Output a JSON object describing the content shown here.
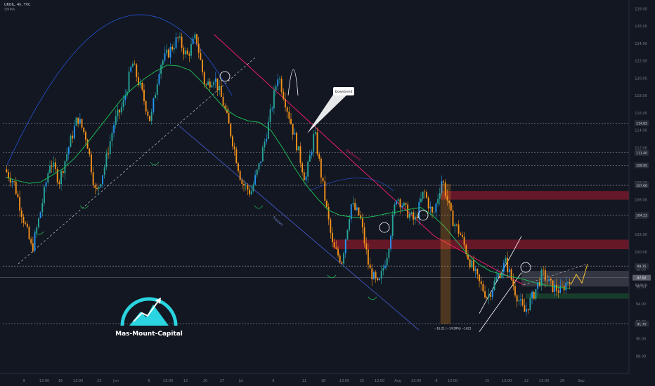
{
  "header": {
    "symbol_line": "UKOIL, 4h, TVC",
    "indicator_line": "SMMA"
  },
  "brand": {
    "name": "Mas-Mount-Capital",
    "accent": "#2ad4e0"
  },
  "annotations": {
    "downtrend": "Downtrend",
    "resistance": "Resistance",
    "support": "Support",
    "measure": "−16.21 (−14.99%) −1621"
  },
  "colors": {
    "background": "#131722",
    "bull_candle": "#26a69a",
    "bull_candle_alt": "#2196f3",
    "bear_candle": "#f7931a",
    "smma": "#1db954",
    "resistance_line": "#e91e63",
    "support_line": "#3f51b5",
    "zone_red": "#8b1a2b",
    "zone_green": "#1b4d2e",
    "zone_grey": "#5d606b"
  },
  "chart_data": {
    "type": "line",
    "title": "",
    "xlabel": "",
    "ylabel": "",
    "ylim": [
      86.0,
      129.0
    ],
    "grid": false,
    "x_tick_labels": [
      "9",
      "13:00",
      "16",
      "13:00",
      "23",
      "Jun",
      "6",
      "13:00",
      "13",
      "20",
      "27",
      "Jul",
      "6",
      "11",
      "18",
      "13:00",
      "25",
      "13:00",
      "Aug",
      "13:00",
      "8",
      "13:00",
      "15",
      "13:00",
      "22",
      "13:00",
      "29",
      "Sep"
    ],
    "y_tick_labels": [
      88.0,
      90.0,
      92.0,
      94.0,
      96.0,
      98.0,
      100.0,
      102.0,
      104.0,
      106.0,
      108.0,
      110.0,
      112.0,
      114.0,
      116.0,
      118.0,
      120.0,
      122.0,
      124.0,
      126.0,
      128.0
    ],
    "price_levels": [
      {
        "value": 114.82,
        "label": "114.82"
      },
      {
        "value": 111.4,
        "label": "111.40"
      },
      {
        "value": 109.95,
        "label": "109.95"
      },
      {
        "value": 107.66,
        "label": "107.66"
      },
      {
        "value": 104.23,
        "label": "104.23"
      },
      {
        "value": 98.35,
        "label": "98.35"
      },
      {
        "value": 91.7,
        "label": "91.70"
      }
    ],
    "current_price": {
      "value": 97.02,
      "label": "97.02"
    },
    "current_price_time": {
      "value": 96.2,
      "label": "03:02:11"
    },
    "zones": [
      {
        "from": 106.0,
        "to": 107.0,
        "type": "resistance"
      },
      {
        "from": 100.3,
        "to": 101.4,
        "type": "resistance"
      },
      {
        "from": 96.0,
        "to": 97.8,
        "type": "neutral"
      },
      {
        "from": 94.6,
        "to": 95.2,
        "type": "support"
      }
    ],
    "series": [
      {
        "name": "SMMA",
        "values": [
          108.6,
          108.2,
          107.9,
          108.0,
          108.8,
          109.6,
          110.8,
          112.4,
          114.1,
          115.8,
          117.5,
          118.8,
          119.9,
          120.8,
          121.5,
          121.4,
          120.9,
          119.6,
          118.0,
          116.5,
          115.6,
          115.1,
          114.9,
          114.0,
          112.0,
          109.8,
          107.8,
          106.2,
          104.8,
          104.2,
          104.0,
          103.9,
          104.1,
          104.4,
          104.6,
          104.9,
          105.1,
          104.2,
          103.0,
          101.4,
          99.8,
          98.6,
          97.8,
          97.4,
          97.1,
          96.8,
          96.4,
          96.1,
          95.9,
          95.8
        ]
      },
      {
        "name": "SMMA-x",
        "values": [
          0,
          1,
          2,
          3,
          4,
          5,
          6,
          7,
          8,
          9,
          10,
          11,
          12,
          13,
          14,
          15,
          16,
          17,
          18,
          19,
          20,
          21,
          22,
          23,
          24,
          25,
          26,
          27,
          28,
          29,
          30,
          31,
          32,
          33,
          34,
          35,
          36,
          37,
          38,
          39,
          40,
          41,
          42,
          43,
          44,
          45,
          46,
          47,
          48,
          49
        ]
      }
    ],
    "candles_close_path": [
      109.5,
      108.0,
      104.0,
      100.2,
      105.0,
      110.5,
      108.2,
      112.0,
      115.5,
      113.0,
      106.5,
      110.0,
      114.8,
      117.0,
      121.8,
      118.5,
      115.0,
      121.5,
      123.0,
      124.6,
      122.5,
      124.8,
      119.0,
      120.2,
      117.0,
      112.8,
      108.0,
      106.8,
      110.2,
      115.0,
      120.5,
      116.5,
      112.5,
      108.2,
      113.8,
      107.0,
      100.5,
      99.0,
      105.5,
      104.0,
      98.0,
      96.0,
      100.0,
      106.5,
      104.8,
      103.5,
      107.0,
      104.0,
      108.5,
      104.0,
      102.0,
      99.0,
      96.5,
      94.8,
      97.0,
      98.8,
      95.5,
      93.0,
      95.0,
      97.5,
      96.0,
      95.5,
      97.0
    ]
  }
}
